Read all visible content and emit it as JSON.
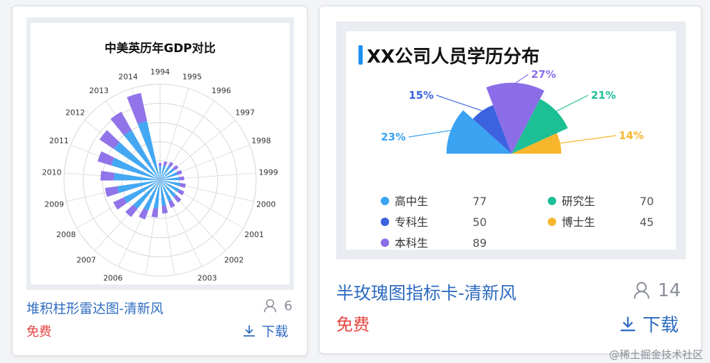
{
  "cards": [
    {
      "chart_title": "中美英历年GDP对比",
      "name": "堆积柱形雷达图-清新风",
      "price": "免费",
      "users": "6",
      "download": "下载"
    },
    {
      "chart_title": "XX公司人员学历分布",
      "name": "半玫瑰图指标卡-清新风",
      "price": "免费",
      "users": "14",
      "download": "下载"
    }
  ],
  "watermark": "@稀土掘金技术社区",
  "chart_data": [
    {
      "type": "bar",
      "title": "中美英历年GDP对比",
      "categories": [
        "1994",
        "1995",
        "1996",
        "1997",
        "1998",
        "1999",
        "2000",
        "2001",
        "2002",
        "2003",
        "2004",
        "2005",
        "2006",
        "2007",
        "2008",
        "2009",
        "2010",
        "2011",
        "2012",
        "2013",
        "2014"
      ],
      "series": [
        {
          "values": [
            14,
            16,
            17,
            18,
            19,
            20,
            21,
            22,
            23,
            24,
            27,
            30,
            34,
            38,
            42,
            45,
            48,
            53,
            58,
            60,
            63
          ]
        },
        {
          "values": [
            4,
            4,
            5,
            5,
            5,
            5,
            6,
            6,
            7,
            7,
            8,
            9,
            10,
            11,
            12,
            13,
            14,
            15,
            18,
            22,
            30
          ]
        }
      ],
      "colors": [
        "#3aa3f2",
        "#8b6de8"
      ],
      "grid": true
    },
    {
      "type": "pie",
      "title": "XX公司人员学历分布",
      "categories": [
        "高中生",
        "专科生",
        "本科生",
        "研究生",
        "博士生"
      ],
      "values": [
        77,
        50,
        89,
        70,
        45
      ],
      "percent_labels": [
        "23%",
        "15%",
        "27%",
        "21%",
        "14%"
      ],
      "colors": [
        "#3aa3f2",
        "#3b63e0",
        "#8b6de8",
        "#1dbf95",
        "#f7b52c"
      ],
      "legend": "bottom"
    }
  ]
}
